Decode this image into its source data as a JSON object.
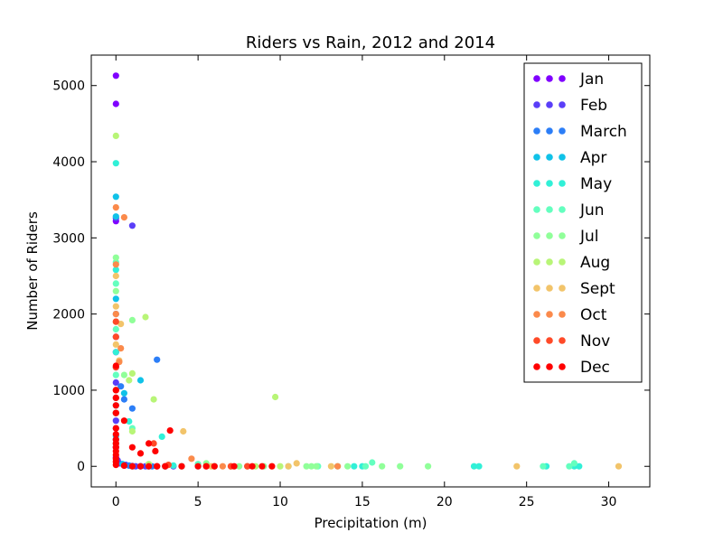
{
  "chart_data": {
    "type": "scatter",
    "title": "Riders vs Rain, 2012 and 2014",
    "xlabel": "Precipitation (m)",
    "ylabel": "Number of Riders",
    "xlim": [
      -1.5,
      32.5
    ],
    "ylim": [
      -270,
      5400
    ],
    "xticks": [
      0,
      5,
      10,
      15,
      20,
      25,
      30
    ],
    "yticks": [
      0,
      1000,
      2000,
      3000,
      4000,
      5000
    ],
    "grid": false,
    "legend_position": "top-right",
    "series": [
      {
        "name": "Jan",
        "color": "#8000ff",
        "points": [
          [
            0,
            5130
          ],
          [
            0,
            4760
          ],
          [
            0,
            3220
          ],
          [
            0,
            1500
          ],
          [
            0,
            900
          ],
          [
            0,
            500
          ],
          [
            0,
            250
          ],
          [
            0,
            120
          ],
          [
            0.2,
            40
          ],
          [
            0.5,
            10
          ],
          [
            1.0,
            5
          ],
          [
            1.5,
            0
          ],
          [
            2.0,
            0
          ],
          [
            3.0,
            0
          ]
        ]
      },
      {
        "name": "Feb",
        "color": "#5a3ef8",
        "points": [
          [
            1.0,
            3160
          ],
          [
            0,
            3260
          ],
          [
            0,
            1700
          ],
          [
            0,
            1100
          ],
          [
            0,
            600
          ],
          [
            0,
            300
          ],
          [
            0.1,
            80
          ],
          [
            0.6,
            20
          ],
          [
            1.2,
            0
          ],
          [
            1.8,
            0
          ],
          [
            2.5,
            0
          ],
          [
            3.5,
            0
          ]
        ]
      },
      {
        "name": "March",
        "color": "#2c7ef7",
        "points": [
          [
            2.5,
            1400
          ],
          [
            1.0,
            760
          ],
          [
            0.5,
            880
          ],
          [
            0.3,
            1050
          ],
          [
            0,
            2000
          ],
          [
            0,
            1300
          ],
          [
            0,
            700
          ],
          [
            0,
            350
          ],
          [
            0.8,
            10
          ],
          [
            1.5,
            0
          ],
          [
            2.2,
            0
          ],
          [
            3.0,
            0
          ],
          [
            4.0,
            0
          ]
        ]
      },
      {
        "name": "Apr",
        "color": "#10c2e8",
        "points": [
          [
            0,
            3540
          ],
          [
            0,
            3280
          ],
          [
            0,
            2200
          ],
          [
            1.5,
            1130
          ],
          [
            0.5,
            960
          ],
          [
            0,
            800
          ],
          [
            0,
            400
          ],
          [
            0.4,
            30
          ],
          [
            1.0,
            0
          ],
          [
            2.0,
            0
          ],
          [
            3.0,
            0
          ],
          [
            5.0,
            0
          ],
          [
            6.0,
            0
          ]
        ]
      },
      {
        "name": "May",
        "color": "#31f0d7",
        "points": [
          [
            0,
            3980
          ],
          [
            0,
            2580
          ],
          [
            2.8,
            390
          ],
          [
            0.8,
            590
          ],
          [
            0,
            1500
          ],
          [
            0,
            700
          ],
          [
            15.0,
            0
          ],
          [
            21.8,
            0
          ],
          [
            22.1,
            0
          ],
          [
            26.2,
            0
          ],
          [
            27.9,
            0
          ],
          [
            28.2,
            0
          ],
          [
            14.5,
            0
          ],
          [
            3.5,
            10
          ],
          [
            1.0,
            0
          ],
          [
            2.0,
            0
          ]
        ]
      },
      {
        "name": "Jun",
        "color": "#64ffbf",
        "points": [
          [
            0,
            2680
          ],
          [
            0,
            2400
          ],
          [
            0,
            1800
          ],
          [
            0,
            1200
          ],
          [
            1.0,
            500
          ],
          [
            15.6,
            50
          ],
          [
            15.2,
            0
          ],
          [
            13.5,
            0
          ],
          [
            12.3,
            0
          ],
          [
            27.9,
            40
          ],
          [
            27.6,
            0
          ],
          [
            26.0,
            0
          ],
          [
            5.0,
            30
          ],
          [
            8.0,
            0
          ],
          [
            10.5,
            0
          ]
        ]
      },
      {
        "name": "Jul",
        "color": "#90ff99",
        "points": [
          [
            0,
            2740
          ],
          [
            0,
            2300
          ],
          [
            1.0,
            1920
          ],
          [
            0.5,
            1200
          ],
          [
            0,
            900
          ],
          [
            17.3,
            0
          ],
          [
            19.0,
            0
          ],
          [
            16.2,
            0
          ],
          [
            11.6,
            0
          ],
          [
            11.9,
            0
          ],
          [
            12.2,
            0
          ],
          [
            14.1,
            0
          ],
          [
            5.5,
            40
          ],
          [
            7.5,
            0
          ],
          [
            9.0,
            0
          ]
        ]
      },
      {
        "name": "Aug",
        "color": "#b8f577",
        "points": [
          [
            0,
            4340
          ],
          [
            1.8,
            1960
          ],
          [
            2.3,
            880
          ],
          [
            9.7,
            910
          ],
          [
            1.0,
            1220
          ],
          [
            0.8,
            1130
          ],
          [
            0,
            700
          ],
          [
            0,
            300
          ],
          [
            1.0,
            460
          ],
          [
            2.0,
            30
          ],
          [
            4.0,
            0
          ],
          [
            6.0,
            0
          ],
          [
            8.5,
            0
          ],
          [
            10.0,
            0
          ]
        ]
      },
      {
        "name": "Sept",
        "color": "#f2c46a",
        "points": [
          [
            0,
            2500
          ],
          [
            0,
            2100
          ],
          [
            0,
            1900
          ],
          [
            0,
            1600
          ],
          [
            4.1,
            460
          ],
          [
            30.6,
            0
          ],
          [
            24.4,
            0
          ],
          [
            13.1,
            0
          ],
          [
            11.0,
            40
          ],
          [
            10.5,
            0
          ],
          [
            9.5,
            0
          ],
          [
            5.8,
            0
          ],
          [
            0.3,
            1870
          ],
          [
            0.2,
            1390
          ]
        ]
      },
      {
        "name": "Oct",
        "color": "#fb8a4b",
        "points": [
          [
            0.5,
            3270
          ],
          [
            0,
            3400
          ],
          [
            0,
            2650
          ],
          [
            0,
            2000
          ],
          [
            0.3,
            1550
          ],
          [
            0.2,
            1370
          ],
          [
            4.6,
            100
          ],
          [
            13.5,
            0
          ],
          [
            3.0,
            0
          ],
          [
            6.5,
            0
          ],
          [
            7.0,
            0
          ],
          [
            8.0,
            0
          ]
        ]
      },
      {
        "name": "Nov",
        "color": "#ff4a28",
        "points": [
          [
            0,
            1900
          ],
          [
            0,
            1700
          ],
          [
            0,
            1300
          ],
          [
            2.3,
            300
          ],
          [
            0,
            1000
          ],
          [
            0,
            700
          ],
          [
            3.2,
            20
          ],
          [
            7.0,
            0
          ],
          [
            8.0,
            0
          ],
          [
            5.5,
            0
          ],
          [
            2.5,
            0
          ]
        ]
      },
      {
        "name": "Dec",
        "color": "#ff0000",
        "points": [
          [
            0,
            1320
          ],
          [
            0,
            1000
          ],
          [
            0,
            900
          ],
          [
            0.5,
            600
          ],
          [
            1.0,
            250
          ],
          [
            1.5,
            170
          ],
          [
            2.0,
            300
          ],
          [
            2.4,
            200
          ],
          [
            3.3,
            470
          ],
          [
            0,
            800
          ],
          [
            0,
            700
          ],
          [
            0,
            500
          ],
          [
            0,
            420
          ],
          [
            0,
            350
          ],
          [
            0,
            300
          ],
          [
            0,
            250
          ],
          [
            0,
            200
          ],
          [
            0,
            150
          ],
          [
            0,
            100
          ],
          [
            0,
            60
          ],
          [
            0,
            20
          ],
          [
            0.5,
            10
          ],
          [
            1.0,
            0
          ],
          [
            1.5,
            0
          ],
          [
            2.0,
            0
          ],
          [
            2.5,
            0
          ],
          [
            3.0,
            0
          ],
          [
            4.0,
            0
          ],
          [
            5.0,
            0
          ],
          [
            5.5,
            0
          ],
          [
            6.0,
            0
          ],
          [
            7.2,
            0
          ],
          [
            8.3,
            0
          ],
          [
            8.9,
            0
          ],
          [
            9.5,
            0
          ]
        ]
      }
    ]
  }
}
